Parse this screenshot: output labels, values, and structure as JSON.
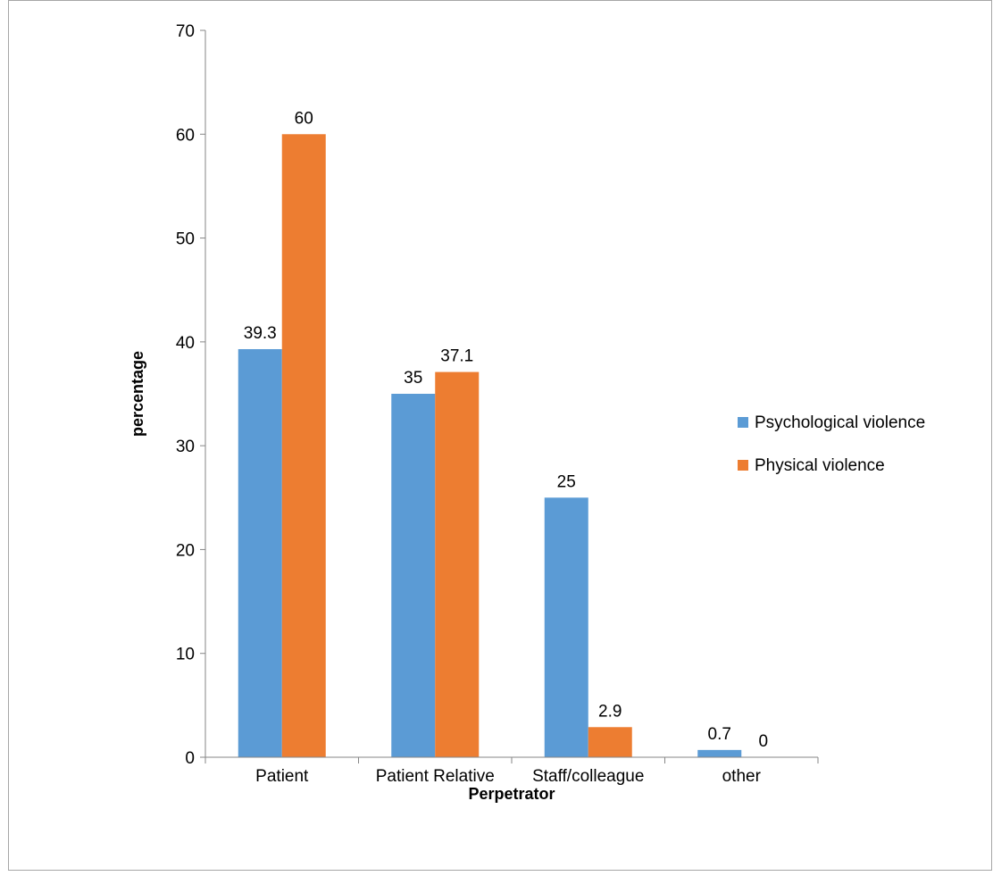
{
  "chart_data": {
    "type": "bar",
    "title": "",
    "xlabel": "Perpetrator",
    "ylabel": "percentage",
    "categories": [
      "Patient",
      "Patient Relative",
      "Staff/colleague",
      "other"
    ],
    "series": [
      {
        "name": "Psychological violence",
        "values": [
          39.3,
          35,
          25,
          0.7
        ],
        "labels": [
          "39.3",
          "35",
          "25",
          "0.7"
        ],
        "color": "#5B9BD5"
      },
      {
        "name": "Physical violence",
        "values": [
          60,
          37.1,
          2.9,
          0
        ],
        "labels": [
          "60",
          "37.1",
          "2.9",
          "0"
        ],
        "color": "#ED7D31"
      }
    ],
    "ylim": [
      0,
      70
    ],
    "yticks": [
      "0",
      "10",
      "20",
      "30",
      "40",
      "50",
      "60",
      "70"
    ],
    "grid": false,
    "legend_position": "right"
  }
}
